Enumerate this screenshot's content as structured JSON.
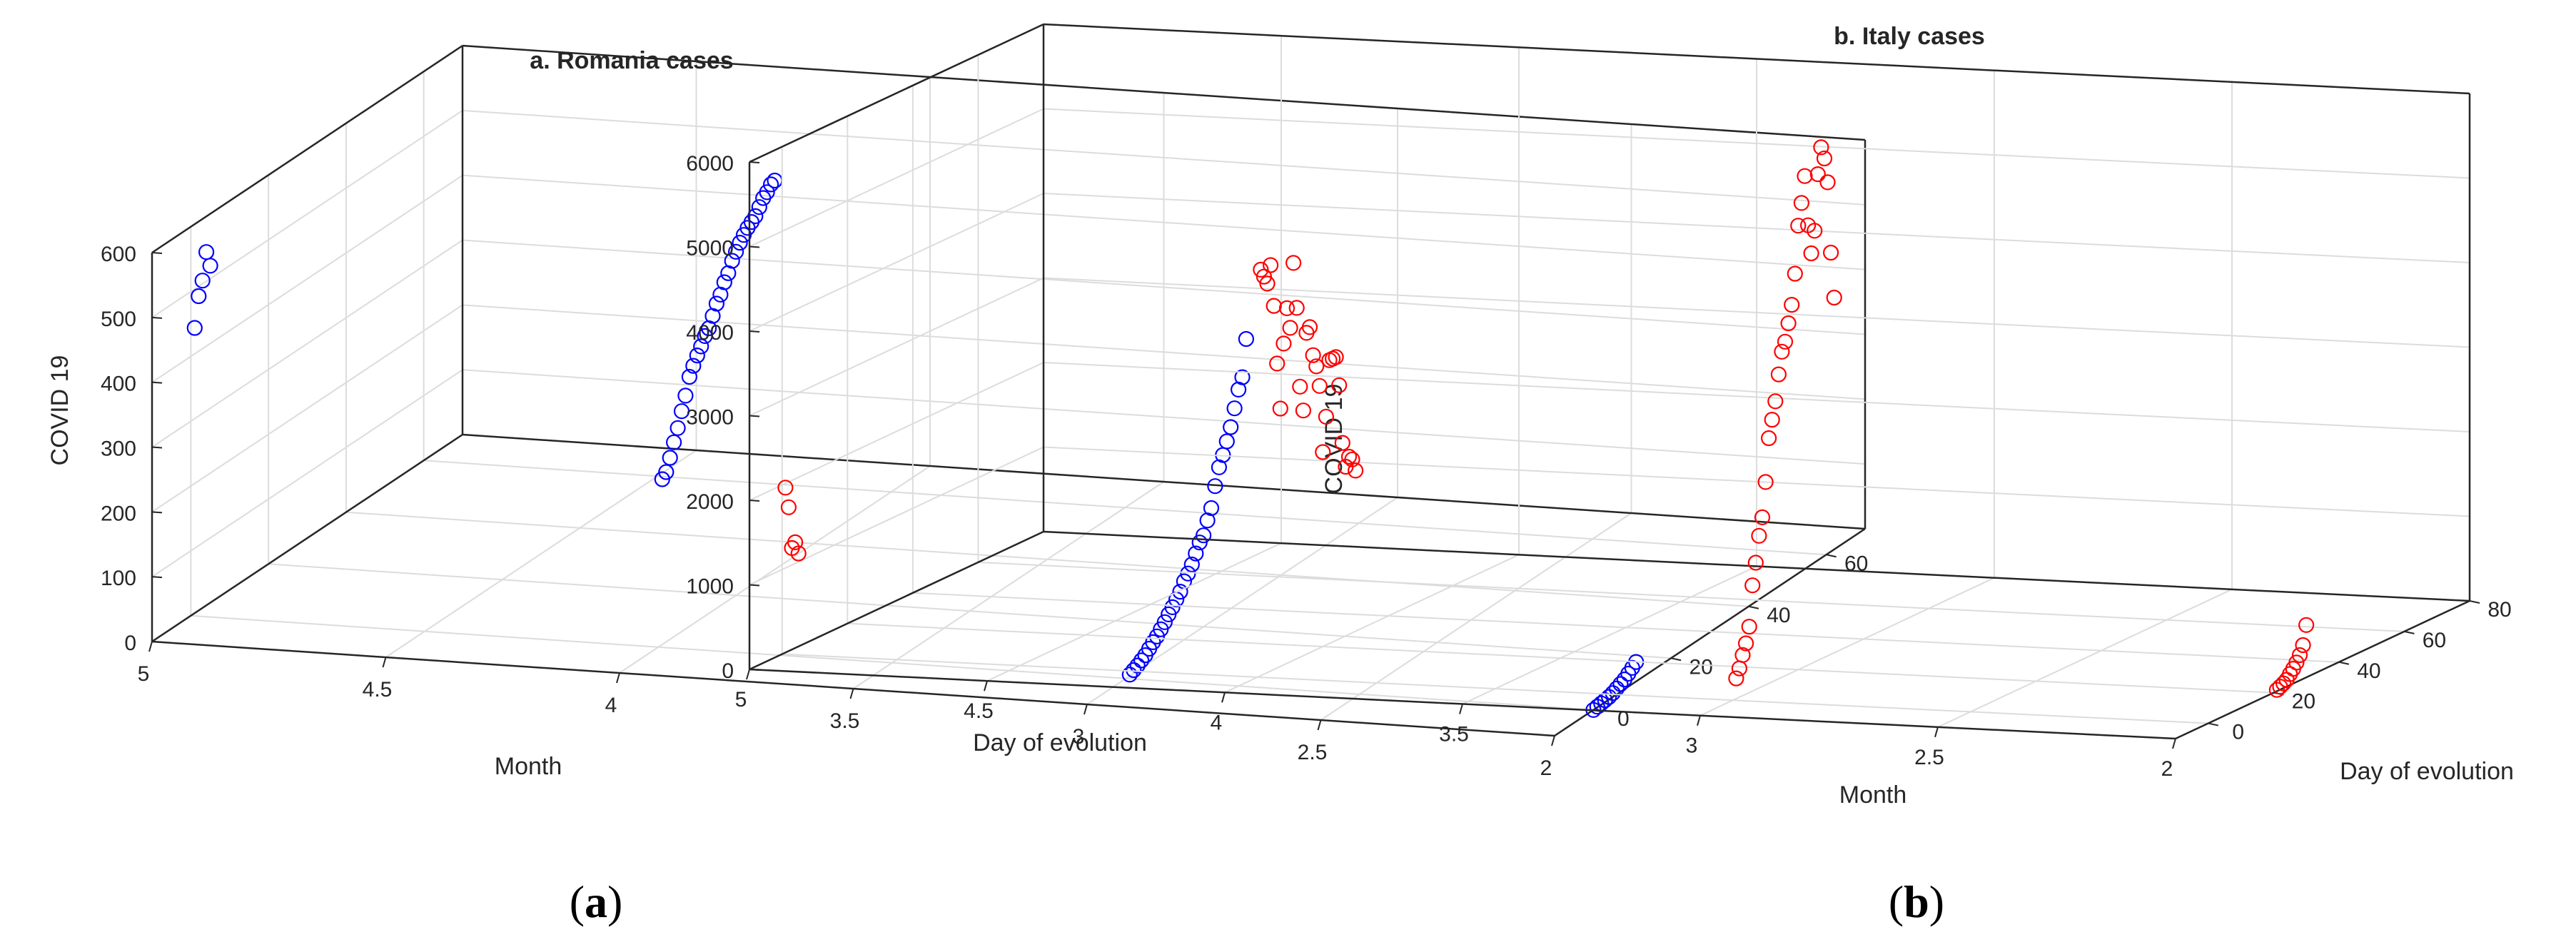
{
  "panel_labels": [
    {
      "open": "(",
      "letter": "a",
      "close": ")"
    },
    {
      "open": "(",
      "letter": "b",
      "close": ")"
    }
  ],
  "chart_data": [
    {
      "type": "scatter",
      "projection": "3d",
      "title": "a. Romania cases",
      "xlabel": "Month",
      "ylabel": "Day of evolution",
      "zlabel": "COVID 19",
      "xlim": [
        2,
        5
      ],
      "ylim": [
        -10,
        70
      ],
      "zlim": [
        0,
        600
      ],
      "xticks": [
        "2",
        "2.5",
        "3",
        "3.5",
        "4",
        "4.5",
        "5"
      ],
      "yticks": [
        "0",
        "20",
        "40",
        "60"
      ],
      "zticks": [
        "0",
        "100",
        "200",
        "300",
        "400",
        "500",
        "600"
      ],
      "grid": true,
      "marker": "open-circle",
      "color": "#0000ff",
      "points": [
        [
          2,
          0,
          0
        ],
        [
          2,
          1,
          1
        ],
        [
          2,
          2,
          2
        ],
        [
          2,
          3,
          3
        ],
        [
          2,
          4,
          4
        ],
        [
          2,
          5,
          6
        ],
        [
          2,
          6,
          9
        ],
        [
          2,
          7,
          12
        ],
        [
          2,
          8,
          15
        ],
        [
          2,
          9,
          20
        ],
        [
          2,
          10,
          25
        ],
        [
          2,
          11,
          30
        ],
        [
          3,
          1,
          2
        ],
        [
          3,
          2,
          5
        ],
        [
          3,
          3,
          8
        ],
        [
          3,
          4,
          12
        ],
        [
          3,
          5,
          16
        ],
        [
          3,
          6,
          22
        ],
        [
          3,
          7,
          28
        ],
        [
          3,
          8,
          33
        ],
        [
          3,
          9,
          40
        ],
        [
          3,
          10,
          47
        ],
        [
          3,
          11,
          55
        ],
        [
          3,
          12,
          62
        ],
        [
          3,
          13,
          70
        ],
        [
          3,
          14,
          78
        ],
        [
          3,
          15,
          90
        ],
        [
          3,
          16,
          98
        ],
        [
          3,
          17,
          108
        ],
        [
          3,
          18,
          121
        ],
        [
          3,
          19,
          134
        ],
        [
          3,
          20,
          141
        ],
        [
          3,
          21,
          160
        ],
        [
          3,
          22,
          175
        ],
        [
          3,
          23,
          205
        ],
        [
          3,
          24,
          230
        ],
        [
          3,
          25,
          245
        ],
        [
          3,
          26,
          262
        ],
        [
          3,
          27,
          280
        ],
        [
          3,
          28,
          305
        ],
        [
          3,
          29,
          330
        ],
        [
          3,
          30,
          345
        ],
        [
          3,
          31,
          400
        ],
        [
          4,
          1,
          255
        ],
        [
          4,
          2,
          262
        ],
        [
          4,
          3,
          280
        ],
        [
          4,
          4,
          300
        ],
        [
          4,
          5,
          318
        ],
        [
          4,
          6,
          340
        ],
        [
          4,
          7,
          360
        ],
        [
          4,
          8,
          385
        ],
        [
          4,
          9,
          398
        ],
        [
          4,
          10,
          410
        ],
        [
          4,
          11,
          420
        ],
        [
          4,
          12,
          432
        ],
        [
          4,
          13,
          440
        ],
        [
          4,
          14,
          455
        ],
        [
          4,
          15,
          470
        ],
        [
          4,
          16,
          480
        ],
        [
          4,
          17,
          495
        ],
        [
          4,
          18,
          505
        ],
        [
          4,
          19,
          520
        ],
        [
          4,
          20,
          530
        ],
        [
          4,
          21,
          540
        ],
        [
          4,
          22,
          548
        ],
        [
          4,
          23,
          555
        ],
        [
          4,
          24,
          560
        ],
        [
          4,
          25,
          565
        ],
        [
          4,
          26,
          575
        ],
        [
          4,
          27,
          585
        ],
        [
          4,
          28,
          590
        ],
        [
          4,
          29,
          598
        ],
        [
          4,
          30,
          600
        ],
        [
          5,
          1,
          440
        ],
        [
          5,
          2,
          485
        ],
        [
          5,
          3,
          505
        ],
        [
          5,
          4,
          545
        ],
        [
          5,
          5,
          520
        ]
      ]
    },
    {
      "type": "scatter",
      "projection": "3d",
      "title": "b. Italy cases",
      "xlabel": "Month",
      "ylabel": "Day of evolution",
      "zlabel": "COVID 19",
      "xlim": [
        2,
        5
      ],
      "ylim": [
        -10,
        80
      ],
      "zlim": [
        0,
        6000
      ],
      "xticks": [
        "2",
        "2.5",
        "3",
        "3.5",
        "4",
        "4.5",
        "5"
      ],
      "yticks": [
        "0",
        "20",
        "40",
        "60",
        "80"
      ],
      "zticks": [
        "0",
        "1000",
        "2000",
        "3000",
        "4000",
        "5000",
        "6000"
      ],
      "grid": true,
      "marker": "open-circle",
      "color": "#ff0000",
      "points": [
        [
          2,
          21,
          15
        ],
        [
          2,
          22,
          35
        ],
        [
          2,
          23,
          55
        ],
        [
          2,
          24,
          80
        ],
        [
          2,
          25,
          130
        ],
        [
          2,
          26,
          175
        ],
        [
          2,
          27,
          230
        ],
        [
          2,
          28,
          300
        ],
        [
          2,
          29,
          400
        ],
        [
          2,
          30,
          620
        ],
        [
          3,
          1,
          240
        ],
        [
          3,
          2,
          340
        ],
        [
          3,
          3,
          480
        ],
        [
          3,
          4,
          600
        ],
        [
          3,
          5,
          780
        ],
        [
          3,
          6,
          1250
        ],
        [
          3,
          7,
          1500
        ],
        [
          3,
          8,
          1800
        ],
        [
          3,
          9,
          2000
        ],
        [
          3,
          10,
          2400
        ],
        [
          3,
          11,
          2900
        ],
        [
          3,
          12,
          3100
        ],
        [
          3,
          13,
          3300
        ],
        [
          3,
          14,
          3600
        ],
        [
          3,
          15,
          3850
        ],
        [
          3,
          16,
          3950
        ],
        [
          3,
          17,
          4150
        ],
        [
          3,
          18,
          4350
        ],
        [
          3,
          19,
          4700
        ],
        [
          3,
          20,
          5250
        ],
        [
          3,
          21,
          5500
        ],
        [
          3,
          22,
          5800
        ],
        [
          3,
          23,
          5200
        ],
        [
          3,
          24,
          4850
        ],
        [
          3,
          25,
          5100
        ],
        [
          3,
          26,
          5750
        ],
        [
          3,
          27,
          6050
        ],
        [
          3,
          28,
          5900
        ],
        [
          3,
          29,
          5600
        ],
        [
          3,
          30,
          4750
        ],
        [
          3,
          31,
          4200
        ],
        [
          4,
          1,
          4800
        ],
        [
          4,
          2,
          4700
        ],
        [
          4,
          3,
          4600
        ],
        [
          4,
          4,
          4800
        ],
        [
          4,
          5,
          4300
        ],
        [
          4,
          6,
          3600
        ],
        [
          4,
          7,
          3050
        ],
        [
          4,
          8,
          3800
        ],
        [
          4,
          9,
          4200
        ],
        [
          4,
          10,
          3950
        ],
        [
          4,
          11,
          4700
        ],
        [
          4,
          12,
          4150
        ],
        [
          4,
          13,
          3200
        ],
        [
          4,
          14,
          2900
        ],
        [
          4,
          15,
          3800
        ],
        [
          4,
          16,
          3850
        ],
        [
          4,
          17,
          3500
        ],
        [
          4,
          18,
          3350
        ],
        [
          4,
          19,
          3100
        ],
        [
          4,
          20,
          2300
        ],
        [
          4,
          21,
          2700
        ],
        [
          4,
          22,
          3350
        ],
        [
          4,
          23,
          3350
        ],
        [
          4,
          24,
          3350
        ],
        [
          4,
          25,
          3000
        ],
        [
          4,
          26,
          2300
        ],
        [
          4,
          27,
          2000
        ],
        [
          4,
          28,
          2100
        ],
        [
          4,
          29,
          2050
        ],
        [
          4,
          30,
          1900
        ],
        [
          5,
          1,
          1950
        ],
        [
          5,
          2,
          1700
        ],
        [
          5,
          3,
          1200
        ],
        [
          5,
          4,
          1250
        ],
        [
          5,
          5,
          1100
        ]
      ]
    }
  ]
}
